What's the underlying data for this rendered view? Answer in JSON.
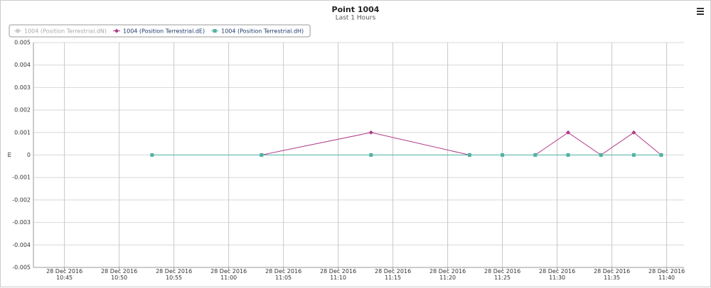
{
  "chart_data": {
    "type": "line",
    "title": "Point 1004",
    "subtitle": "Last 1 Hours",
    "y_label": "m",
    "x": [
      "2016-12-28T10:53",
      "2016-12-28T11:03",
      "2016-12-28T11:13",
      "2016-12-28T11:22",
      "2016-12-28T11:25",
      "2016-12-28T11:28",
      "2016-12-28T11:31",
      "2016-12-28T11:34",
      "2016-12-28T11:37",
      "2016-12-28T11:39:30"
    ],
    "series": [
      {
        "name": "1004 (Position Terrestrial.dN)",
        "color": "#cccccc",
        "marker": "circle",
        "visible": false,
        "values": [
          null,
          null,
          null,
          null,
          null,
          null,
          null,
          null,
          null,
          null
        ]
      },
      {
        "name": "1004 (Position Terrestrial.dE)",
        "color": "#b03a86",
        "marker": "diamond",
        "visible": true,
        "values": [
          null,
          0,
          0.001,
          0,
          0,
          0,
          0.001,
          0,
          0.001,
          0
        ]
      },
      {
        "name": "1004 (Position Terrestrial.dH)",
        "color": "#4fb3a2",
        "marker": "square",
        "visible": true,
        "values": [
          0,
          0,
          0,
          0,
          0,
          0,
          0,
          0,
          0,
          0
        ]
      }
    ],
    "xlim": [
      "2016-12-28T10:42:10",
      "2016-12-28T11:41:35"
    ],
    "xticks": [
      {
        "value": "2016-12-28T10:45",
        "label": "28 Dec 2016\n10:45"
      },
      {
        "value": "2016-12-28T10:50",
        "label": "28 Dec 2016\n10:50"
      },
      {
        "value": "2016-12-28T10:55",
        "label": "28 Dec 2016\n10:55"
      },
      {
        "value": "2016-12-28T11:00",
        "label": "28 Dec 2016\n11:00"
      },
      {
        "value": "2016-12-28T11:05",
        "label": "28 Dec 2016\n11:05"
      },
      {
        "value": "2016-12-28T11:10",
        "label": "28 Dec 2016\n11:10"
      },
      {
        "value": "2016-12-28T11:15",
        "label": "28 Dec 2016\n11:15"
      },
      {
        "value": "2016-12-28T11:20",
        "label": "28 Dec 2016\n11:20"
      },
      {
        "value": "2016-12-28T11:25",
        "label": "28 Dec 2016\n11:25"
      },
      {
        "value": "2016-12-28T11:30",
        "label": "28 Dec 2016\n11:30"
      },
      {
        "value": "2016-12-28T11:35",
        "label": "28 Dec 2016\n11:35"
      },
      {
        "value": "2016-12-28T11:40",
        "label": "28 Dec 2016\n11:40"
      }
    ],
    "ylim": [
      -0.005,
      0.005
    ],
    "yticks": [
      0.005,
      0.004,
      0.003,
      0.002,
      0.001,
      0,
      -0.001,
      -0.002,
      -0.003,
      -0.004,
      -0.005
    ],
    "grid": true,
    "legend": "top-left"
  }
}
